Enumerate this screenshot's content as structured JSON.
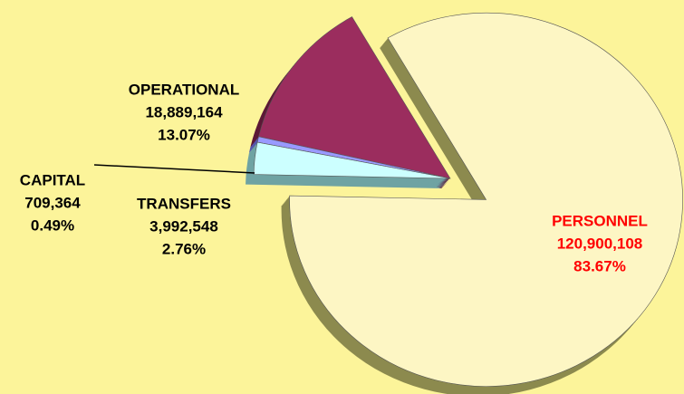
{
  "chart_data": {
    "type": "pie",
    "categories": [
      "OPERATIONAL",
      "CAPITAL",
      "TRANSFERS",
      "PERSONNEL"
    ],
    "values": [
      18889164,
      709364,
      3992548,
      120900108
    ],
    "value_labels": [
      "18,889,164",
      "709,364",
      "3,992,548",
      "120,900,108"
    ],
    "percents": [
      13.07,
      0.49,
      2.76,
      83.67
    ],
    "percent_labels": [
      "13.07%",
      "0.49%",
      "2.76%",
      "83.67%"
    ],
    "colors": [
      "#9b2d5e",
      "#9999ff",
      "#ccffff",
      "#fdf6c4"
    ],
    "side_colors": [
      "#5c1836",
      "#5555aa",
      "#6fa3a3",
      "#8c8a4e"
    ],
    "label_colors": [
      "#000000",
      "#000000",
      "#000000",
      "#ff0000"
    ],
    "explode": [
      false,
      false,
      false,
      true
    ]
  }
}
